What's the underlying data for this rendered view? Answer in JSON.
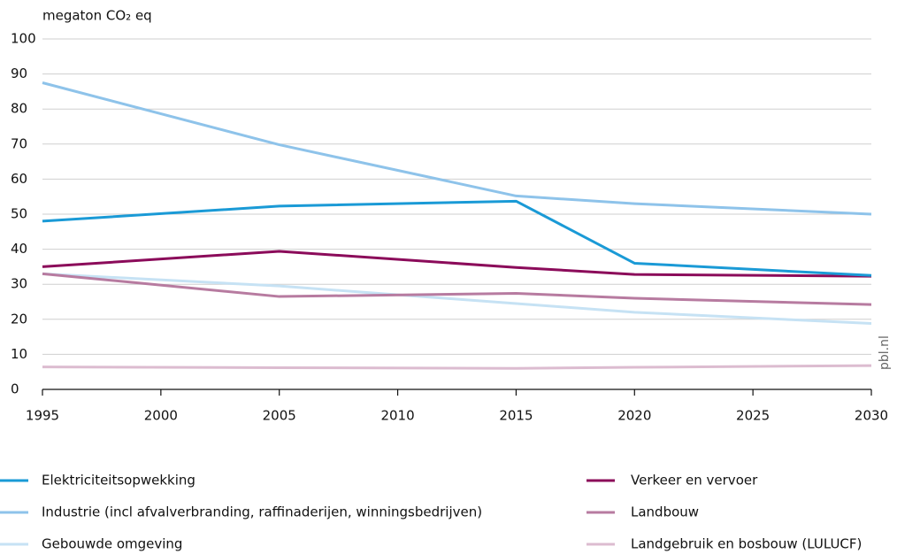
{
  "chart_data": {
    "type": "line",
    "y_label": "megaton CO₂ eq",
    "source": "pbl.nl",
    "x": [
      1995,
      2005,
      2015,
      2020,
      2030
    ],
    "xlim": [
      1995,
      2030
    ],
    "xticks": [
      1995,
      2000,
      2005,
      2010,
      2015,
      2020,
      2025,
      2030
    ],
    "ylim": [
      0,
      100
    ],
    "yticks": [
      0,
      10,
      20,
      30,
      40,
      50,
      60,
      70,
      80,
      90,
      100
    ],
    "grid": true,
    "legend": "bottom",
    "series": [
      {
        "name": "Elektriciteitsopwekking",
        "color": "#1a9ad6",
        "values": [
          48,
          52.3,
          53.7,
          36,
          32.5
        ]
      },
      {
        "name": "Industrie (incl afvalverbranding, raffinaderijen, winningsbedrijven)",
        "color": "#8ec3ea",
        "values": [
          87.5,
          69.8,
          55.2,
          53,
          50
        ]
      },
      {
        "name": "Gebouwde omgeving",
        "color": "#c6e2f4",
        "values": [
          33,
          29.5,
          24.5,
          22,
          18.8
        ]
      },
      {
        "name": "Verkeer en vervoer",
        "color": "#8b0b5a",
        "values": [
          35,
          39.4,
          34.8,
          32.8,
          32.3
        ]
      },
      {
        "name": "Landbouw",
        "color": "#b77ba0",
        "values": [
          33,
          26.5,
          27.4,
          26,
          24.2
        ]
      },
      {
        "name": "Landgebruik en bosbouw (LULUCF)",
        "color": "#dcbcd0",
        "values": [
          6.4,
          6.2,
          6,
          6.3,
          6.8
        ]
      }
    ]
  }
}
